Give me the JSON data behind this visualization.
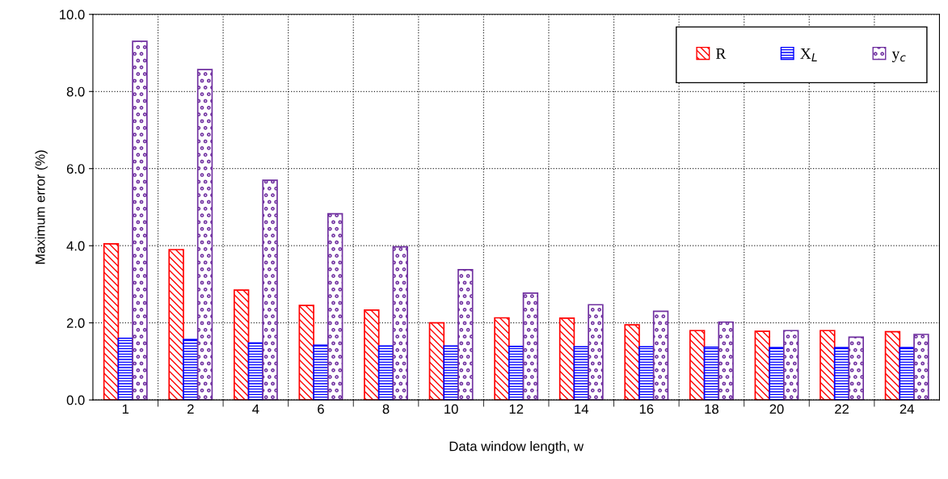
{
  "chart_data": {
    "type": "bar",
    "xlabel": "Data window length, w",
    "ylabel": "Maximum error (%)",
    "categories": [
      "1",
      "2",
      "4",
      "6",
      "8",
      "10",
      "12",
      "14",
      "16",
      "18",
      "20",
      "22",
      "24"
    ],
    "series": [
      {
        "name": "R",
        "color": "#ff0000",
        "values": [
          4.05,
          3.9,
          2.85,
          2.45,
          2.33,
          2.0,
          2.13,
          2.12,
          1.95,
          1.8,
          1.78,
          1.8,
          1.77
        ]
      },
      {
        "name": "X$_{L}$",
        "color": "#0000ff",
        "values": [
          1.6,
          1.57,
          1.48,
          1.42,
          1.4,
          1.4,
          1.39,
          1.38,
          1.38,
          1.37,
          1.36,
          1.36,
          1.36
        ]
      },
      {
        "name": "y$_{c}$",
        "color": "#7030a0",
        "values": [
          9.3,
          8.57,
          5.7,
          4.83,
          3.97,
          3.38,
          2.77,
          2.47,
          2.3,
          2.02,
          1.8,
          1.63,
          1.7
        ]
      }
    ],
    "ylim": [
      0,
      10
    ],
    "yticks": [
      {
        "value": 0,
        "label": "0.0"
      },
      {
        "value": 2,
        "label": "2.0"
      },
      {
        "value": 4,
        "label": "4.0"
      },
      {
        "value": 6,
        "label": "6.0"
      },
      {
        "value": 8,
        "label": "8.0"
      },
      {
        "value": 10,
        "label": "10.0"
      }
    ],
    "grid": true,
    "legend": "top right"
  }
}
